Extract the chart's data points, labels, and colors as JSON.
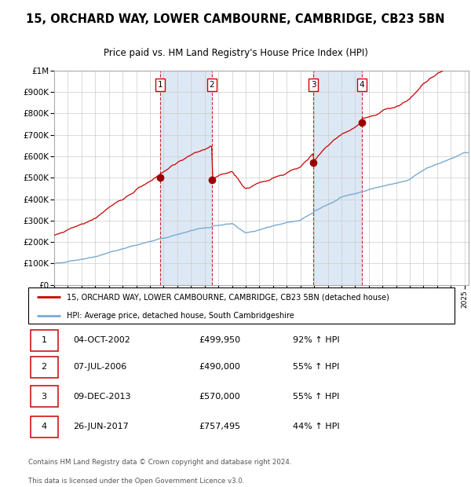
{
  "title1": "15, ORCHARD WAY, LOWER CAMBOURNE, CAMBRIDGE, CB23 5BN",
  "title2": "Price paid vs. HM Land Registry's House Price Index (HPI)",
  "legend_line1": "15, ORCHARD WAY, LOWER CAMBOURNE, CAMBRIDGE, CB23 5BN (detached house)",
  "legend_line2": "HPI: Average price, detached house, South Cambridgeshire",
  "footer1": "Contains HM Land Registry data © Crown copyright and database right 2024.",
  "footer2": "This data is licensed under the Open Government Licence v3.0.",
  "sales": [
    {
      "num": 1,
      "date_label": "04-OCT-2002",
      "price": 499950,
      "pct": "92% ↑ HPI",
      "x": 2002.75
    },
    {
      "num": 2,
      "date_label": "07-JUL-2006",
      "price": 490000,
      "pct": "55% ↑ HPI",
      "x": 2006.52
    },
    {
      "num": 3,
      "date_label": "09-DEC-2013",
      "price": 570000,
      "pct": "55% ↑ HPI",
      "x": 2013.94
    },
    {
      "num": 4,
      "date_label": "26-JUN-2017",
      "price": 757495,
      "pct": "44% ↑ HPI",
      "x": 2017.49
    }
  ],
  "hpi_color": "#7aaad0",
  "price_color": "#cc0000",
  "sale_marker_color": "#990000",
  "background_shade": "#dde8f5",
  "ylim": [
    0,
    1000000
  ],
  "xlim_start": 1995.0,
  "xlim_end": 2025.3,
  "yticks": [
    0,
    100000,
    200000,
    300000,
    400000,
    500000,
    600000,
    700000,
    800000,
    900000,
    1000000
  ],
  "ylabels": [
    "£0",
    "£100K",
    "£200K",
    "£300K",
    "£400K",
    "£500K",
    "£600K",
    "£700K",
    "£800K",
    "£900K",
    "£1M"
  ]
}
